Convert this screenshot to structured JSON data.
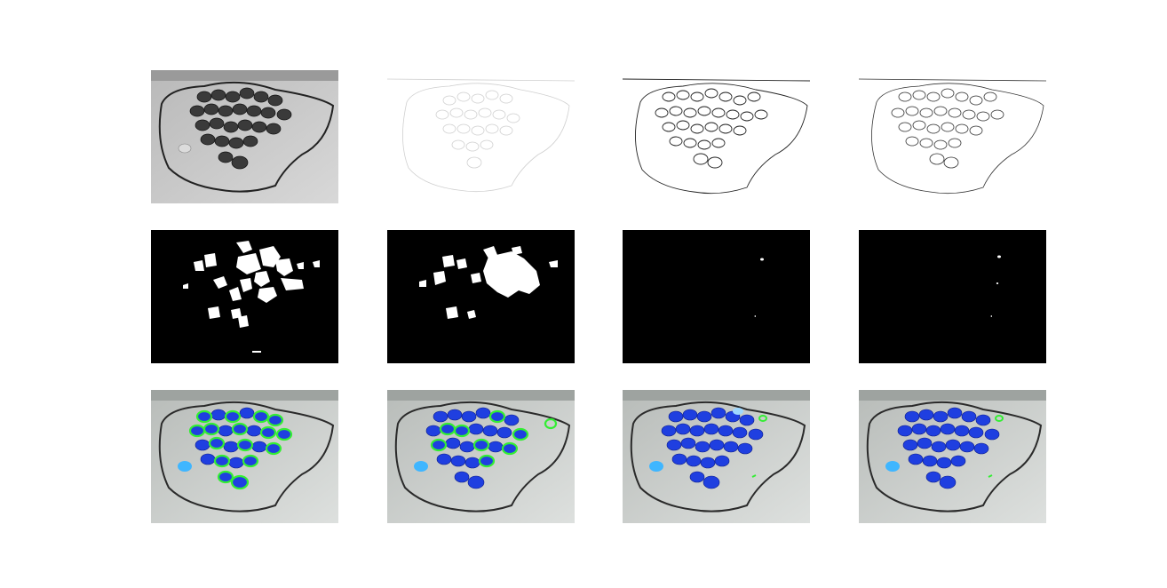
{
  "figure": {
    "rows": 3,
    "columns": 4,
    "panels": [
      {
        "row": 0,
        "col": 0,
        "kind": "grayscale-photo"
      },
      {
        "row": 0,
        "col": 1,
        "kind": "faint-edge-map"
      },
      {
        "row": 0,
        "col": 2,
        "kind": "edge-map"
      },
      {
        "row": 0,
        "col": 3,
        "kind": "edge-map"
      },
      {
        "row": 1,
        "col": 0,
        "kind": "binary-mask",
        "blob_density": "high"
      },
      {
        "row": 1,
        "col": 1,
        "kind": "binary-mask",
        "blob_density": "medium"
      },
      {
        "row": 1,
        "col": 2,
        "kind": "binary-mask",
        "blob_density": "very-low"
      },
      {
        "row": 1,
        "col": 3,
        "kind": "binary-mask",
        "blob_density": "very-low"
      },
      {
        "row": 2,
        "col": 0,
        "kind": "color-overlay",
        "overlay_density": "high"
      },
      {
        "row": 2,
        "col": 1,
        "kind": "color-overlay",
        "overlay_density": "medium"
      },
      {
        "row": 2,
        "col": 2,
        "kind": "color-overlay",
        "overlay_density": "low"
      },
      {
        "row": 2,
        "col": 3,
        "kind": "color-overlay",
        "overlay_density": "low"
      }
    ],
    "colors": {
      "background": "#ffffff",
      "mask_background": "#000000",
      "mask_foreground": "#ffffff",
      "caps": "#1f3fe0",
      "caps_highlight": "#3f6bff",
      "light_cap": "#3fb6ff",
      "overlay_contour": "#33ee33",
      "cable": "#2a2a2a",
      "floor": "#c8cbc9"
    }
  }
}
